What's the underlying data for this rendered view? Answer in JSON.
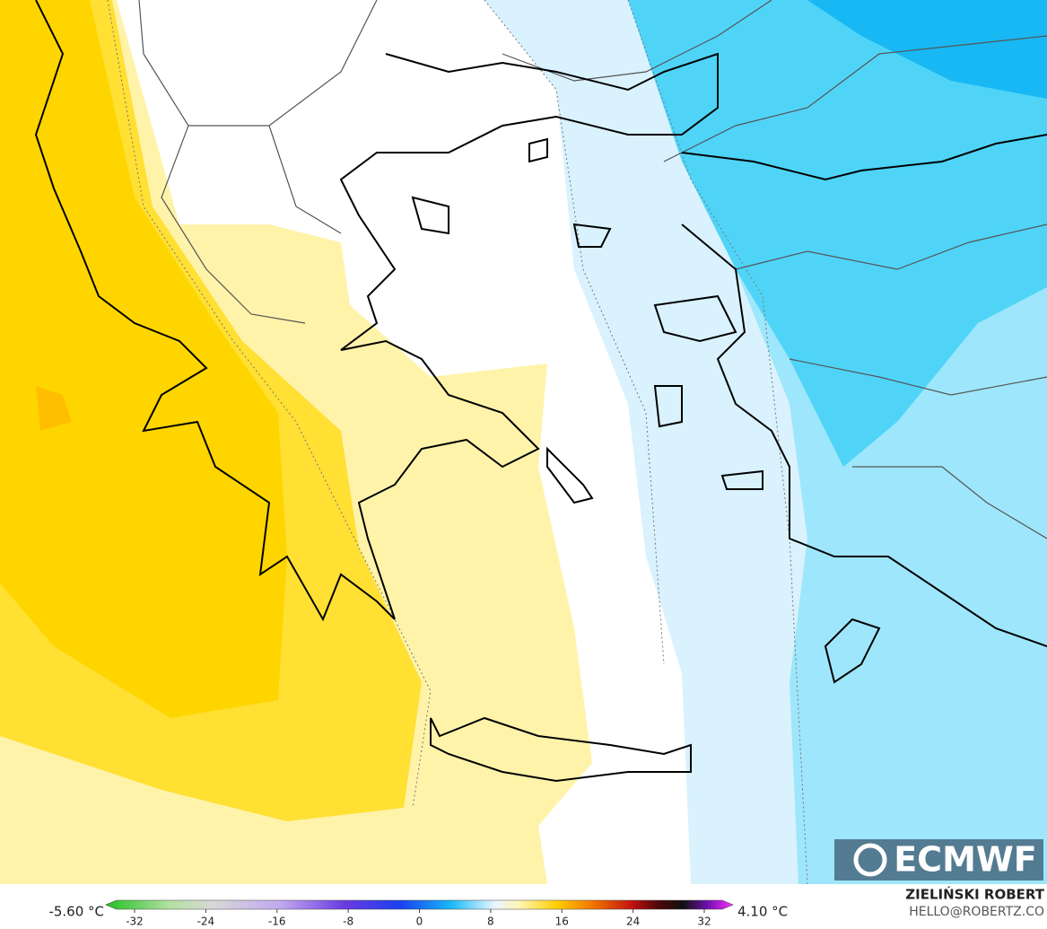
{
  "legend": {
    "min_label": "-5.60 °C",
    "max_label": "4.10 °C",
    "ticks": [
      -32,
      -24,
      -16,
      -8,
      0,
      8,
      16,
      24,
      32
    ]
  },
  "credit": {
    "author": "ZIELIŃSKI ROBERT",
    "contact": "HELLO@ROBERTZ.CO"
  },
  "logo": "ECMWF"
}
